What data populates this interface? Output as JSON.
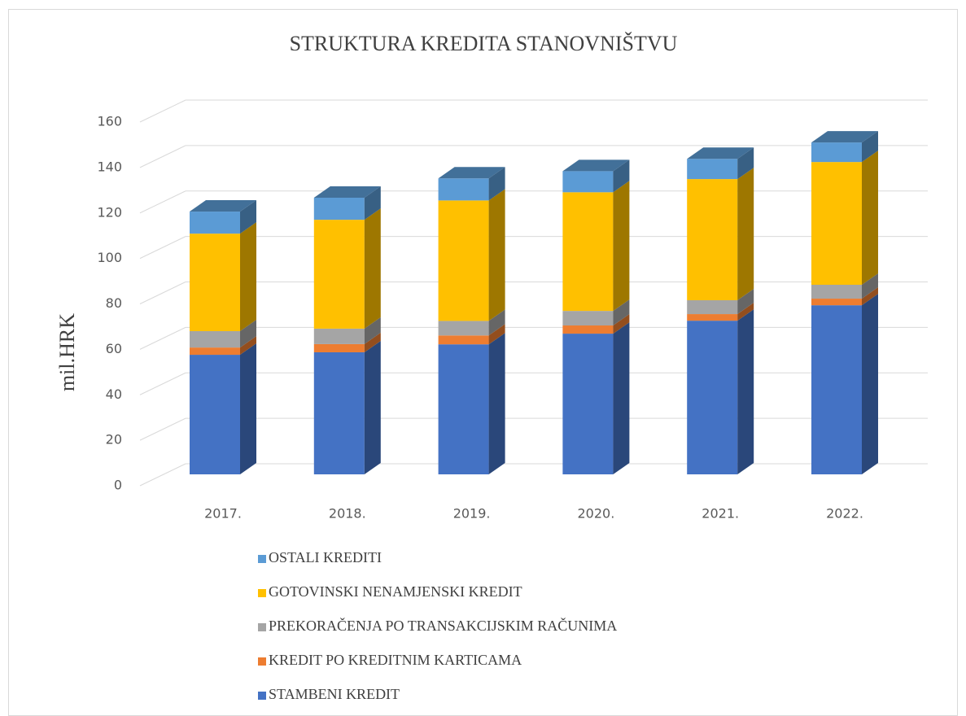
{
  "chart_data": {
    "type": "bar3d_stacked",
    "title": "STRUKTURA KREDITA STANOVNIŠTVU",
    "y_label": "mil.HRK",
    "categories": [
      "2017.",
      "2018.",
      "2019.",
      "2020.",
      "2021.",
      "2022."
    ],
    "series": [
      {
        "name": "STAMBENI KREDIT",
        "color": "#4472c4",
        "values": [
          52.6,
          53.7,
          57.2,
          61.9,
          67.6,
          74.4
        ]
      },
      {
        "name": "KREDIT PO KREDITNIM KARTICAMA",
        "color": "#ed7d31",
        "values": [
          3.2,
          3.6,
          3.9,
          3.6,
          2.9,
          2.9
        ]
      },
      {
        "name": "PREKORAČENJA PO TRANSAKCIJSKIM RAČUNIMA",
        "color": "#a5a5a5",
        "values": [
          7.2,
          6.8,
          6.4,
          6.4,
          6.1,
          6.1
        ]
      },
      {
        "name": "GOTOVINSKI NENAMJENSKI KREDIT",
        "color": "#ffc000",
        "values": [
          42.9,
          47.9,
          53.0,
          52.2,
          53.3,
          54.0
        ]
      },
      {
        "name": "OSTALI KREDITI",
        "color": "#5b9bd5",
        "values": [
          9.7,
          9.7,
          9.7,
          9.3,
          8.9,
          8.6
        ]
      }
    ],
    "ylim": [
      0,
      160
    ],
    "yticks": [
      0,
      20,
      40,
      60,
      80,
      100,
      120,
      140,
      160
    ],
    "grid": true,
    "legend": "bottom"
  }
}
